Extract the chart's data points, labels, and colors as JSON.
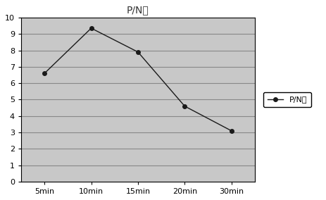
{
  "title": "P/N値",
  "x_labels": [
    "5min",
    "10min",
    "15min",
    "20min",
    "30min"
  ],
  "y_values": [
    6.6,
    9.35,
    7.9,
    4.6,
    3.1
  ],
  "ylim": [
    0,
    10
  ],
  "yticks": [
    0,
    1,
    2,
    3,
    4,
    5,
    6,
    7,
    8,
    9,
    10
  ],
  "line_color": "#1a1a1a",
  "marker": "o",
  "marker_size": 4,
  "marker_facecolor": "#1a1a1a",
  "legend_label": "P/N値",
  "plot_bg_color": "#c8c8c8",
  "fig_bg_color": "#ffffff",
  "grid_color": "#aaaaaa",
  "title_fontsize": 10,
  "tick_fontsize": 8,
  "legend_fontsize": 8
}
